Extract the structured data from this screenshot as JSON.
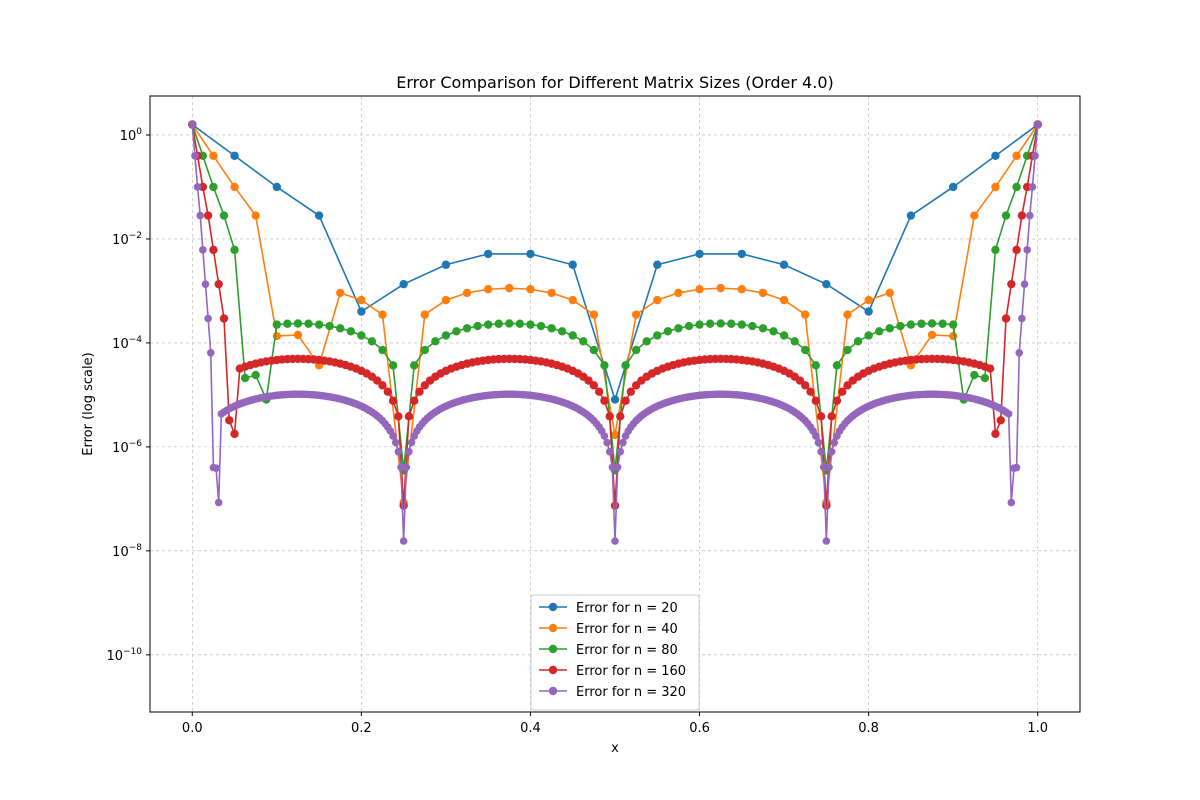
{
  "chart_data": {
    "type": "line",
    "title": "Error Comparison for Different Matrix Sizes (Order 4.0)",
    "xlabel": "x",
    "ylabel": "Error (log scale)",
    "xlim": [
      -0.05,
      1.05
    ],
    "ylim_log10": [
      -11.1,
      0.75
    ],
    "yscale": "log",
    "grid": true,
    "legend_position": "lower center",
    "x_ticks": [
      "0.0",
      "0.2",
      "0.4",
      "0.6",
      "0.8",
      "1.0"
    ],
    "x_tick_values": [
      0.0,
      0.2,
      0.4,
      0.6,
      0.8,
      1.0
    ],
    "y_ticks": [
      {
        "exp": 0,
        "label": "10",
        "sup": "0"
      },
      {
        "exp": -2,
        "label": "10",
        "sup": "−2"
      },
      {
        "exp": -4,
        "label": "10",
        "sup": "−4"
      },
      {
        "exp": -6,
        "label": "10",
        "sup": "−6"
      },
      {
        "exp": -8,
        "label": "10",
        "sup": "−8"
      },
      {
        "exp": -10,
        "label": "10",
        "sup": "−10"
      }
    ],
    "series": [
      {
        "name": "Error for n = 20",
        "n": 20,
        "color": "#1f77b4"
      },
      {
        "name": "Error for n = 40",
        "n": 40,
        "color": "#ff7f0e"
      },
      {
        "name": "Error for n = 80",
        "n": 80,
        "color": "#2ca02c"
      },
      {
        "name": "Error for n = 160",
        "n": 160,
        "color": "#d62728"
      },
      {
        "name": "Error for n = 320",
        "n": 320,
        "color": "#9467bd"
      }
    ]
  }
}
